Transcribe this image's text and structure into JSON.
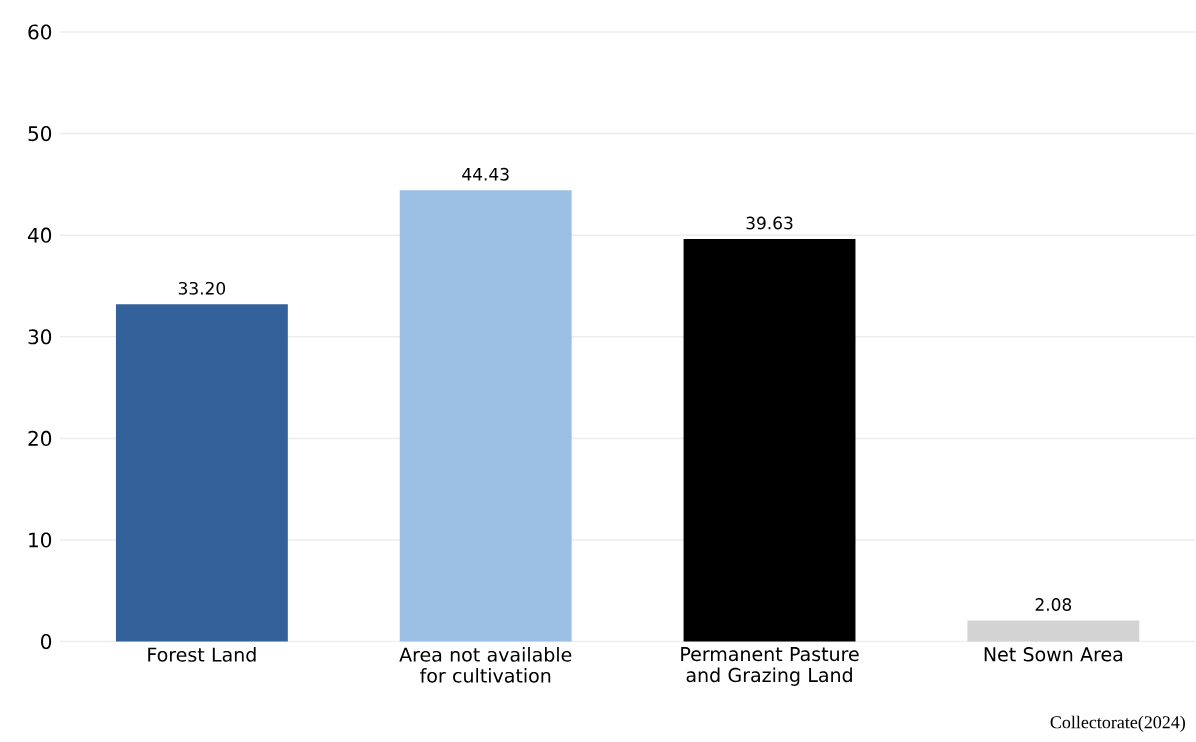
{
  "chart_data": {
    "type": "bar",
    "categories": [
      "Forest Land",
      "Area not available for cultivation",
      "Permanent Pasture and Grazing Land",
      "Net Sown Area"
    ],
    "values": [
      33.2,
      44.43,
      39.63,
      2.08
    ],
    "colors": [
      "#336199",
      "#9bc0e3",
      "#000000",
      "#d3d3d3"
    ],
    "value_labels": [
      "33.20",
      "44.43",
      "39.63",
      "2.08"
    ],
    "ylim": [
      0,
      60
    ],
    "yticks": [
      0,
      10,
      20,
      30,
      40,
      50,
      60
    ],
    "grid": "y",
    "annotations": [
      "Collectorate(2024)"
    ]
  }
}
